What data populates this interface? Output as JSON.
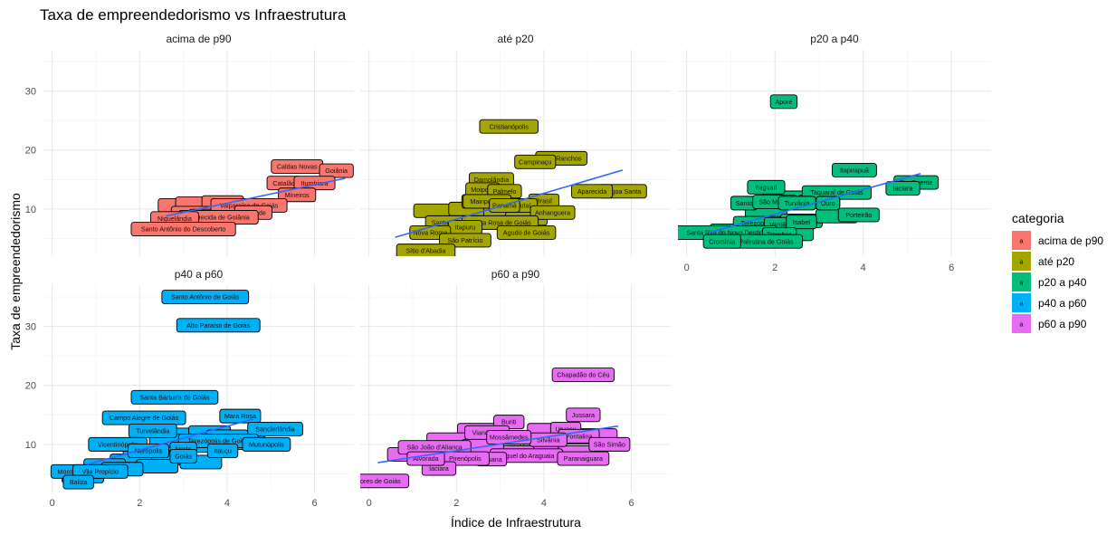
{
  "chart_data": {
    "type": "scatter",
    "title": "Taxa de empreendedorismo vs Infraestrutura",
    "xlabel": "Índice de Infraestrutura",
    "ylabel": "Taxa de empreendedorismo",
    "xlim": [
      -0.2,
      6.9
    ],
    "ylim": [
      2,
      37
    ],
    "x_ticks": [
      0,
      2,
      4,
      6
    ],
    "y_ticks": [
      10,
      20,
      30
    ],
    "grid": true,
    "legend": {
      "title": "categoria",
      "position": "right",
      "key_glyph": "a",
      "entries": [
        "acima de p90",
        "até p20",
        "p20 a p40",
        "p40 a p60",
        "p60 a p90"
      ]
    },
    "colors": {
      "acima de p90": "#F8766D",
      "até p20": "#A3A500",
      "p20 a p40": "#00BF7D",
      "p40 a p60": "#00B0F6",
      "p60 a p90": "#E76BF3"
    },
    "trend_color": "#3366FF",
    "panels": [
      {
        "name": "acima de p90",
        "trend": [
          [
            2.6,
            8.8
          ],
          [
            6.7,
            15.2
          ]
        ],
        "points": [
          {
            "label": "",
            "x": 2.9,
            "y": 10.6
          },
          {
            "label": "",
            "x": 3.3,
            "y": 10.9
          },
          {
            "label": "",
            "x": 3.9,
            "y": 11.1
          },
          {
            "label": "",
            "x": 3.2,
            "y": 9.3
          },
          {
            "label": "",
            "x": 4.4,
            "y": 10.3
          },
          {
            "label": "",
            "x": 3.6,
            "y": 8.8
          },
          {
            "label": "Caldas Novas",
            "x": 5.6,
            "y": 17.2
          },
          {
            "label": "Goiânia",
            "x": 6.5,
            "y": 16.5
          },
          {
            "label": "Catalão",
            "x": 5.3,
            "y": 14.4
          },
          {
            "label": "Itumbiara",
            "x": 6.0,
            "y": 14.4
          },
          {
            "label": "Mineiros",
            "x": 5.6,
            "y": 12.4
          },
          {
            "label": "Valparaíso de Goiás",
            "x": 4.5,
            "y": 10.6
          },
          {
            "label": "Trindade",
            "x": 4.6,
            "y": 9.4
          },
          {
            "label": "Aparecida de Goiânia",
            "x": 3.8,
            "y": 8.6
          },
          {
            "label": "Niquelândia",
            "x": 2.8,
            "y": 8.4
          },
          {
            "label": "Santo Antônio do Descoberto",
            "x": 3.0,
            "y": 6.6
          }
        ]
      },
      {
        "name": "até p20",
        "trend": [
          [
            0.6,
            5.2
          ],
          [
            5.8,
            16.6
          ]
        ],
        "points": [
          {
            "label": "",
            "x": 1.5,
            "y": 9.7
          },
          {
            "label": "",
            "x": 2.3,
            "y": 10.0
          },
          {
            "label": "",
            "x": 3.1,
            "y": 9.4
          },
          {
            "label": "",
            "x": 1.9,
            "y": 7.6
          },
          {
            "label": "",
            "x": 3.6,
            "y": 8.4
          },
          {
            "label": "",
            "x": 2.6,
            "y": 11.3
          },
          {
            "label": "Cristianópolis",
            "x": 3.2,
            "y": 24.0
          },
          {
            "label": "Três Ranchos",
            "x": 4.4,
            "y": 18.6
          },
          {
            "label": "Campinaçu",
            "x": 3.8,
            "y": 18.0
          },
          {
            "label": "Damolândia",
            "x": 2.8,
            "y": 15.0
          },
          {
            "label": "Moiporá",
            "x": 2.6,
            "y": 13.3
          },
          {
            "label": "Palmelo",
            "x": 3.1,
            "y": 13.0
          },
          {
            "label": "Lagoa Santa",
            "x": 5.8,
            "y": 13.0
          },
          {
            "label": "Aparecida",
            "x": 5.1,
            "y": 13.0
          },
          {
            "label": "Mairipotaba",
            "x": 2.7,
            "y": 11.3
          },
          {
            "label": "Brasil",
            "x": 4.0,
            "y": 11.4
          },
          {
            "label": "Urutaí",
            "x": 3.5,
            "y": 10.6
          },
          {
            "label": "Panamá",
            "x": 3.1,
            "y": 10.6
          },
          {
            "label": "Anhanguera",
            "x": 4.2,
            "y": 9.4
          },
          {
            "label": "Santa Cruz",
            "x": 1.8,
            "y": 7.7
          },
          {
            "label": "Santa Rosa de Goiás",
            "x": 3.0,
            "y": 7.7
          },
          {
            "label": "Itapuru",
            "x": 2.2,
            "y": 6.9
          },
          {
            "label": "Nova Roma",
            "x": 1.4,
            "y": 6.0
          },
          {
            "label": "Agudo de Goiás",
            "x": 3.6,
            "y": 6.0
          },
          {
            "label": "São Patrício",
            "x": 2.2,
            "y": 4.7
          },
          {
            "label": "Sítio d'Abadia",
            "x": 1.3,
            "y": 2.9
          }
        ]
      },
      {
        "name": "p20 a p40",
        "trend": [
          [
            0.5,
            6.0
          ],
          [
            5.3,
            16.0
          ]
        ],
        "points": [
          {
            "label": "",
            "x": 1.0,
            "y": 6.3
          },
          {
            "label": "",
            "x": 1.8,
            "y": 9.6
          },
          {
            "label": "",
            "x": 2.2,
            "y": 11.9
          },
          {
            "label": "",
            "x": 3.0,
            "y": 11.2
          },
          {
            "label": "",
            "x": 2.6,
            "y": 8.0
          },
          {
            "label": "",
            "x": 3.4,
            "y": 8.8
          },
          {
            "label": "",
            "x": 1.5,
            "y": 6.0
          },
          {
            "label": "",
            "x": 2.4,
            "y": 5.8
          },
          {
            "label": "Aporé",
            "x": 2.2,
            "y": 28.2
          },
          {
            "label": "Itapirapuã",
            "x": 3.8,
            "y": 16.6
          },
          {
            "label": "Rio Quente",
            "x": 5.2,
            "y": 14.5
          },
          {
            "label": "Iaciara",
            "x": 4.9,
            "y": 13.5
          },
          {
            "label": "Itaguari",
            "x": 1.8,
            "y": 13.7
          },
          {
            "label": "Taquaral de Goiás",
            "x": 3.4,
            "y": 12.8
          },
          {
            "label": "Santo",
            "x": 1.3,
            "y": 11.0
          },
          {
            "label": "São Miguel",
            "x": 2.0,
            "y": 11.2
          },
          {
            "label": "Turvânia",
            "x": 2.5,
            "y": 11.0
          },
          {
            "label": "Ouro",
            "x": 3.2,
            "y": 11.0
          },
          {
            "label": "Porteirão",
            "x": 3.9,
            "y": 9.0
          },
          {
            "label": "Terezópolis",
            "x": 1.6,
            "y": 7.6
          },
          {
            "label": "Vanjão",
            "x": 2.1,
            "y": 7.4
          },
          {
            "label": "Isabel",
            "x": 2.6,
            "y": 7.8
          },
          {
            "label": "Santa Rita do Novo Destino",
            "x": 0.9,
            "y": 6.0
          },
          {
            "label": "Trombas",
            "x": 2.1,
            "y": 5.7
          },
          {
            "label": "Palestina de Goiás",
            "x": 1.8,
            "y": 4.5
          },
          {
            "label": "Cromínia",
            "x": 0.8,
            "y": 4.5
          }
        ]
      },
      {
        "name": "p40 a p60",
        "trend": [
          [
            0.8,
            6.6
          ],
          [
            4.6,
            14.3
          ]
        ],
        "points": [
          {
            "label": "",
            "x": 3.0,
            "y": 11.6
          },
          {
            "label": "",
            "x": 3.6,
            "y": 12.0
          },
          {
            "label": "",
            "x": 4.0,
            "y": 11.3
          },
          {
            "label": "",
            "x": 2.7,
            "y": 10.6
          },
          {
            "label": "",
            "x": 2.1,
            "y": 8.5
          },
          {
            "label": "",
            "x": 2.6,
            "y": 7.7
          },
          {
            "label": "",
            "x": 3.4,
            "y": 9.8
          },
          {
            "label": "",
            "x": 1.8,
            "y": 7.2
          },
          {
            "label": "",
            "x": 1.2,
            "y": 6.4
          },
          {
            "label": "",
            "x": 2.4,
            "y": 6.3
          },
          {
            "label": "",
            "x": 3.4,
            "y": 7.0
          },
          {
            "label": "",
            "x": 4.4,
            "y": 10.3
          },
          {
            "label": "",
            "x": 0.7,
            "y": 4.6
          },
          {
            "label": "",
            "x": 1.6,
            "y": 5.8
          },
          {
            "label": "Santo Antônio de Goiás",
            "x": 3.5,
            "y": 35.0
          },
          {
            "label": "Alto Paraíso de Goiás",
            "x": 3.8,
            "y": 30.2
          },
          {
            "label": "Santa Bárbara de Goiás",
            "x": 2.8,
            "y": 18.0
          },
          {
            "label": "Campo Alegre de Goiás",
            "x": 2.1,
            "y": 14.5
          },
          {
            "label": "Mara Rosa",
            "x": 4.3,
            "y": 14.8
          },
          {
            "label": "Sanclerlândia",
            "x": 5.1,
            "y": 12.6
          },
          {
            "label": "Turvelândia",
            "x": 2.3,
            "y": 12.3
          },
          {
            "label": "Terezópolis de Goiás",
            "x": 3.8,
            "y": 10.6
          },
          {
            "label": "Mutunópolis",
            "x": 4.9,
            "y": 10.0
          },
          {
            "label": "Vicentinópolis",
            "x": 1.5,
            "y": 10.0
          },
          {
            "label": "Nerópolis",
            "x": 2.2,
            "y": 8.9
          },
          {
            "label": "Norte",
            "x": 3.0,
            "y": 9.2
          },
          {
            "label": "Itauçu",
            "x": 3.9,
            "y": 8.9
          },
          {
            "label": "Goiás",
            "x": 3.0,
            "y": 8.0
          },
          {
            "label": "Montes Claros",
            "x": 0.6,
            "y": 5.4
          },
          {
            "label": "Vila Propício",
            "x": 1.1,
            "y": 5.4
          },
          {
            "label": "Baliza",
            "x": 0.6,
            "y": 3.6
          }
        ]
      },
      {
        "name": "p60 a p90",
        "trend": [
          [
            0.2,
            6.9
          ],
          [
            5.7,
            13.1
          ]
        ],
        "points": [
          {
            "label": "",
            "x": 2.5,
            "y": 12.4
          },
          {
            "label": "",
            "x": 4.1,
            "y": 12.4
          },
          {
            "label": "",
            "x": 4.9,
            "y": 11.2
          },
          {
            "label": "",
            "x": 1.8,
            "y": 10.8
          },
          {
            "label": "",
            "x": 3.0,
            "y": 10.2
          },
          {
            "label": "",
            "x": 4.0,
            "y": 9.2
          },
          {
            "label": "",
            "x": 1.4,
            "y": 9.0
          },
          {
            "label": "",
            "x": 2.2,
            "y": 8.5
          },
          {
            "label": "",
            "x": 3.3,
            "y": 8.6
          },
          {
            "label": "",
            "x": 4.8,
            "y": 8.6
          },
          {
            "label": "",
            "x": 0.9,
            "y": 8.3
          },
          {
            "label": "",
            "x": 5.2,
            "y": 11.5
          },
          {
            "label": "",
            "x": 2.6,
            "y": 9.7
          },
          {
            "label": "Chapadão do Céu",
            "x": 4.9,
            "y": 21.8
          },
          {
            "label": "Jussara",
            "x": 4.9,
            "y": 15.0
          },
          {
            "label": "Buriti",
            "x": 3.2,
            "y": 13.8
          },
          {
            "label": "Uruaçu",
            "x": 4.5,
            "y": 12.6
          },
          {
            "label": "Vianópolis",
            "x": 2.7,
            "y": 12.0
          },
          {
            "label": "Pontalina",
            "x": 4.8,
            "y": 11.4
          },
          {
            "label": "Silvânia",
            "x": 4.1,
            "y": 10.8
          },
          {
            "label": "Mossâmedes",
            "x": 3.2,
            "y": 11.2
          },
          {
            "label": "São Simão",
            "x": 5.5,
            "y": 10.0
          },
          {
            "label": "São João d'Aliança",
            "x": 1.5,
            "y": 9.5
          },
          {
            "label": "Miguel do Araguaia",
            "x": 3.6,
            "y": 8.1
          },
          {
            "label": "Paranaiguara",
            "x": 4.9,
            "y": 7.6
          },
          {
            "label": "Uruana",
            "x": 2.8,
            "y": 7.5
          },
          {
            "label": "Pirenópolis",
            "x": 2.2,
            "y": 7.6
          },
          {
            "label": "Iaciara",
            "x": 1.6,
            "y": 5.9
          },
          {
            "label": "Alvorada",
            "x": 1.3,
            "y": 7.6
          },
          {
            "label": "Flores de Goiás",
            "x": 0.2,
            "y": 3.8
          }
        ]
      }
    ]
  }
}
